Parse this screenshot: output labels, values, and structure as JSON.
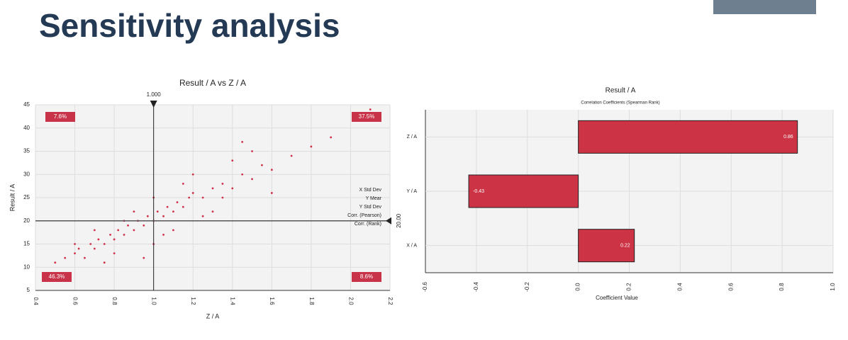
{
  "title": "Sensitivity analysis",
  "chart_data": [
    {
      "type": "scatter",
      "title": "Result / A vs Z / A",
      "x_label": "Z / A",
      "y_label": "Result / A",
      "color": "#d0324a",
      "x": [
        0.5,
        0.55,
        0.6,
        0.62,
        0.65,
        0.68,
        0.7,
        0.72,
        0.75,
        0.78,
        0.8,
        0.82,
        0.85,
        0.87,
        0.9,
        0.92,
        0.95,
        0.97,
        1.0,
        1.02,
        1.05,
        1.07,
        1.1,
        1.12,
        1.15,
        1.18,
        1.2,
        1.25,
        1.3,
        1.35,
        1.4,
        1.45,
        1.5,
        1.55,
        1.6,
        1.7,
        1.8,
        1.9,
        2.1,
        0.8,
        0.9,
        1.0,
        1.1,
        1.2,
        1.3,
        0.7,
        1.0,
        1.15,
        1.25,
        1.4,
        0.6,
        0.95,
        1.5,
        1.6,
        1.05,
        0.85,
        1.35,
        1.45,
        0.75
      ],
      "values": [
        11,
        12,
        13,
        14,
        12,
        15,
        14,
        16,
        15,
        17,
        16,
        18,
        17,
        19,
        18,
        20,
        19,
        21,
        20,
        22,
        21,
        23,
        22,
        24,
        23,
        25,
        26,
        25,
        27,
        28,
        27,
        30,
        29,
        32,
        31,
        34,
        36,
        38,
        44,
        13,
        22,
        25,
        18,
        30,
        22,
        18,
        15,
        28,
        21,
        33,
        15,
        12,
        35,
        26,
        17,
        20,
        25,
        37,
        11
      ],
      "xlim": [
        0.4,
        2.2
      ],
      "xticks": [
        0.4,
        0.6,
        0.8,
        {
          "value": 1,
          "label": "1.0"
        },
        1.2,
        1.4,
        1.6,
        1.8,
        {
          "value": 2,
          "label": "2.0"
        },
        2.2
      ],
      "ylim": [
        5,
        45
      ],
      "yticks": [
        5,
        10,
        15,
        20,
        25,
        30,
        35,
        40,
        45
      ],
      "grid": true,
      "x_marker": {
        "value": 1,
        "label": "1.000"
      },
      "y_marker": {
        "value": 20,
        "label": "20.00"
      },
      "quadrants": {
        "values": [
          7.6,
          37.5,
          46.3,
          8.6
        ],
        "value_labels": [
          "7.6%",
          "37.5%",
          "46.3%",
          "8.6%"
        ]
      },
      "stat_labels": [
        "X Std Dev",
        "Y Mear",
        "Y Std Dev",
        "Corr. (Pearson)",
        "Corr. (Rank)"
      ]
    },
    {
      "type": "bar",
      "orientation": "horizontal",
      "title": "Result / A",
      "subtitle": "Correlation Coefficients (Spearman Rank)",
      "x_label": "Coefficient Value",
      "color": "#cc3344",
      "categories": [
        "Z / A",
        "Y / A",
        "X / A"
      ],
      "values": [
        0.86,
        -0.43,
        0.22
      ],
      "xlim": [
        -0.6,
        1.0
      ],
      "xticks": [
        -0.6,
        -0.4,
        -0.2,
        {
          "value": 0,
          "label": "0.0"
        },
        0.2,
        0.4,
        0.6,
        0.8,
        {
          "value": 1,
          "label": "1.0"
        }
      ],
      "grid": true
    }
  ]
}
